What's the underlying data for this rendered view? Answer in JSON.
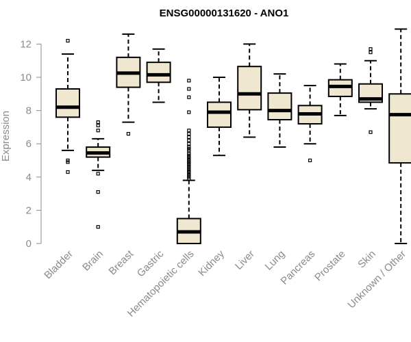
{
  "chart_data": {
    "type": "boxplot",
    "title": "ENSG00000131620 - ANO1",
    "xlabel": "",
    "ylabel": "Expression",
    "ylim": [
      0,
      13
    ],
    "yticks": [
      0,
      2,
      4,
      6,
      8,
      10,
      12
    ],
    "box_fill": "#efe7cf",
    "stroke": "#000000",
    "categories": [
      "Bladder",
      "Brain",
      "Breast",
      "Gastric",
      "Hematopoietic cells",
      "Kidney",
      "Liver",
      "Lung",
      "Pancreas",
      "Prostate",
      "Skin",
      "Unknown / Other"
    ],
    "boxes": [
      {
        "name": "Bladder",
        "whisker_low": 5.6,
        "q1": 7.6,
        "median": 8.2,
        "q3": 9.3,
        "whisker_high": 11.4,
        "outliers": [
          12.2,
          5.0,
          4.9,
          4.3
        ]
      },
      {
        "name": "Brain",
        "whisker_low": 4.4,
        "q1": 5.2,
        "median": 5.45,
        "q3": 5.8,
        "whisker_high": 6.3,
        "outliers": [
          7.3,
          7.1,
          6.8,
          4.2,
          3.1,
          1.0
        ]
      },
      {
        "name": "Breast",
        "whisker_low": 7.3,
        "q1": 9.4,
        "median": 10.25,
        "q3": 11.2,
        "whisker_high": 12.6,
        "outliers": [
          6.6
        ]
      },
      {
        "name": "Gastric",
        "whisker_low": 8.5,
        "q1": 9.7,
        "median": 10.15,
        "q3": 10.9,
        "whisker_high": 11.7,
        "outliers": []
      },
      {
        "name": "Hematopoietic cells",
        "whisker_low": 0.0,
        "q1": 0.0,
        "median": 0.7,
        "q3": 1.5,
        "whisker_high": 3.8,
        "outliers": [
          9.8,
          9.3,
          8.8,
          7.9,
          6.8,
          6.6,
          6.4,
          6.2,
          6.0,
          5.8,
          5.7,
          5.6,
          5.4,
          5.3,
          5.2,
          5.1,
          5.0,
          4.9,
          4.8,
          4.7,
          4.6,
          4.5,
          4.4,
          4.3,
          4.2,
          4.1,
          4.0,
          3.9
        ]
      },
      {
        "name": "Kidney",
        "whisker_low": 5.3,
        "q1": 7.0,
        "median": 7.9,
        "q3": 8.5,
        "whisker_high": 10.0,
        "outliers": []
      },
      {
        "name": "Liver",
        "whisker_low": 6.4,
        "q1": 8.05,
        "median": 9.0,
        "q3": 10.65,
        "whisker_high": 12.0,
        "outliers": []
      },
      {
        "name": "Lung",
        "whisker_low": 5.8,
        "q1": 7.45,
        "median": 8.0,
        "q3": 9.05,
        "whisker_high": 10.2,
        "outliers": []
      },
      {
        "name": "Pancreas",
        "whisker_low": 6.0,
        "q1": 7.2,
        "median": 7.8,
        "q3": 8.3,
        "whisker_high": 9.5,
        "outliers": [
          5.0
        ]
      },
      {
        "name": "Prostate",
        "whisker_low": 7.7,
        "q1": 8.85,
        "median": 9.45,
        "q3": 9.85,
        "whisker_high": 10.8,
        "outliers": []
      },
      {
        "name": "Skin",
        "whisker_low": 8.1,
        "q1": 8.5,
        "median": 8.7,
        "q3": 9.6,
        "whisker_high": 11.0,
        "outliers": [
          11.7,
          11.5,
          6.7
        ]
      },
      {
        "name": "Unknown / Other",
        "whisker_low": 0.0,
        "q1": 4.85,
        "median": 7.75,
        "q3": 9.0,
        "whisker_high": 12.9,
        "outliers": []
      }
    ]
  }
}
